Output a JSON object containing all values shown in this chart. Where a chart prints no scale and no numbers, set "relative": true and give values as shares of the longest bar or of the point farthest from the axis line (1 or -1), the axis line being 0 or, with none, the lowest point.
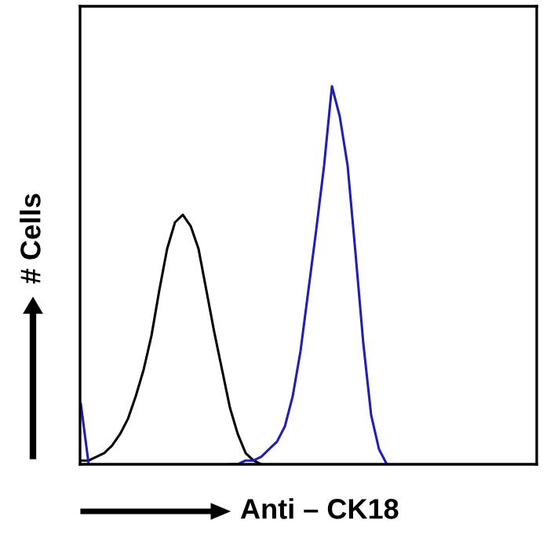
{
  "chart_data": {
    "type": "line",
    "relative": true,
    "xlabel": "Anti – CK18",
    "ylabel": "# Cells",
    "grid": false,
    "legend": false,
    "marker": "none",
    "line_style": "solid",
    "categories": [
      null,
      null,
      null,
      null,
      null,
      null,
      null,
      null,
      null,
      null,
      null,
      null,
      null,
      null,
      null,
      null,
      null,
      null,
      null,
      null,
      null,
      null,
      null,
      null,
      null,
      null,
      null,
      null,
      null,
      null,
      null,
      null,
      null,
      null,
      null,
      null,
      null,
      null,
      null,
      null,
      null,
      null,
      null,
      null,
      null,
      null,
      null,
      null,
      null,
      null,
      null,
      null,
      null,
      null,
      null,
      null,
      null,
      null,
      null
    ],
    "series": [
      {
        "color": "#000000",
        "values": [
          0.01,
          0.01,
          0.02,
          0.03,
          0.05,
          0.08,
          0.12,
          0.18,
          0.25,
          0.34,
          0.46,
          0.57,
          0.64,
          0.66,
          0.63,
          0.57,
          0.46,
          0.35,
          0.25,
          0.15,
          0.08,
          0.03,
          0.01,
          0,
          null,
          null,
          null,
          null,
          null,
          null,
          null,
          null,
          null,
          null,
          null,
          null,
          null,
          null,
          null,
          null,
          null,
          null,
          null,
          null,
          null,
          null,
          null,
          null,
          null,
          null,
          null,
          null,
          null,
          null,
          null,
          null,
          null,
          null,
          null
        ]
      },
      {
        "color": "#1f1fb4",
        "values": [
          0.16,
          0,
          null,
          null,
          null,
          null,
          null,
          null,
          null,
          null,
          null,
          null,
          null,
          null,
          null,
          null,
          null,
          null,
          null,
          0,
          0,
          0.01,
          0.01,
          0.02,
          0.04,
          0.06,
          0.1,
          0.18,
          0.3,
          0.46,
          0.62,
          0.79,
          1,
          0.92,
          0.79,
          0.56,
          0.32,
          0.13,
          0.04,
          0,
          null,
          null,
          null,
          null,
          null,
          null,
          null,
          null,
          null,
          null,
          null,
          null,
          null,
          null,
          null,
          null,
          null,
          null,
          null
        ]
      }
    ]
  }
}
